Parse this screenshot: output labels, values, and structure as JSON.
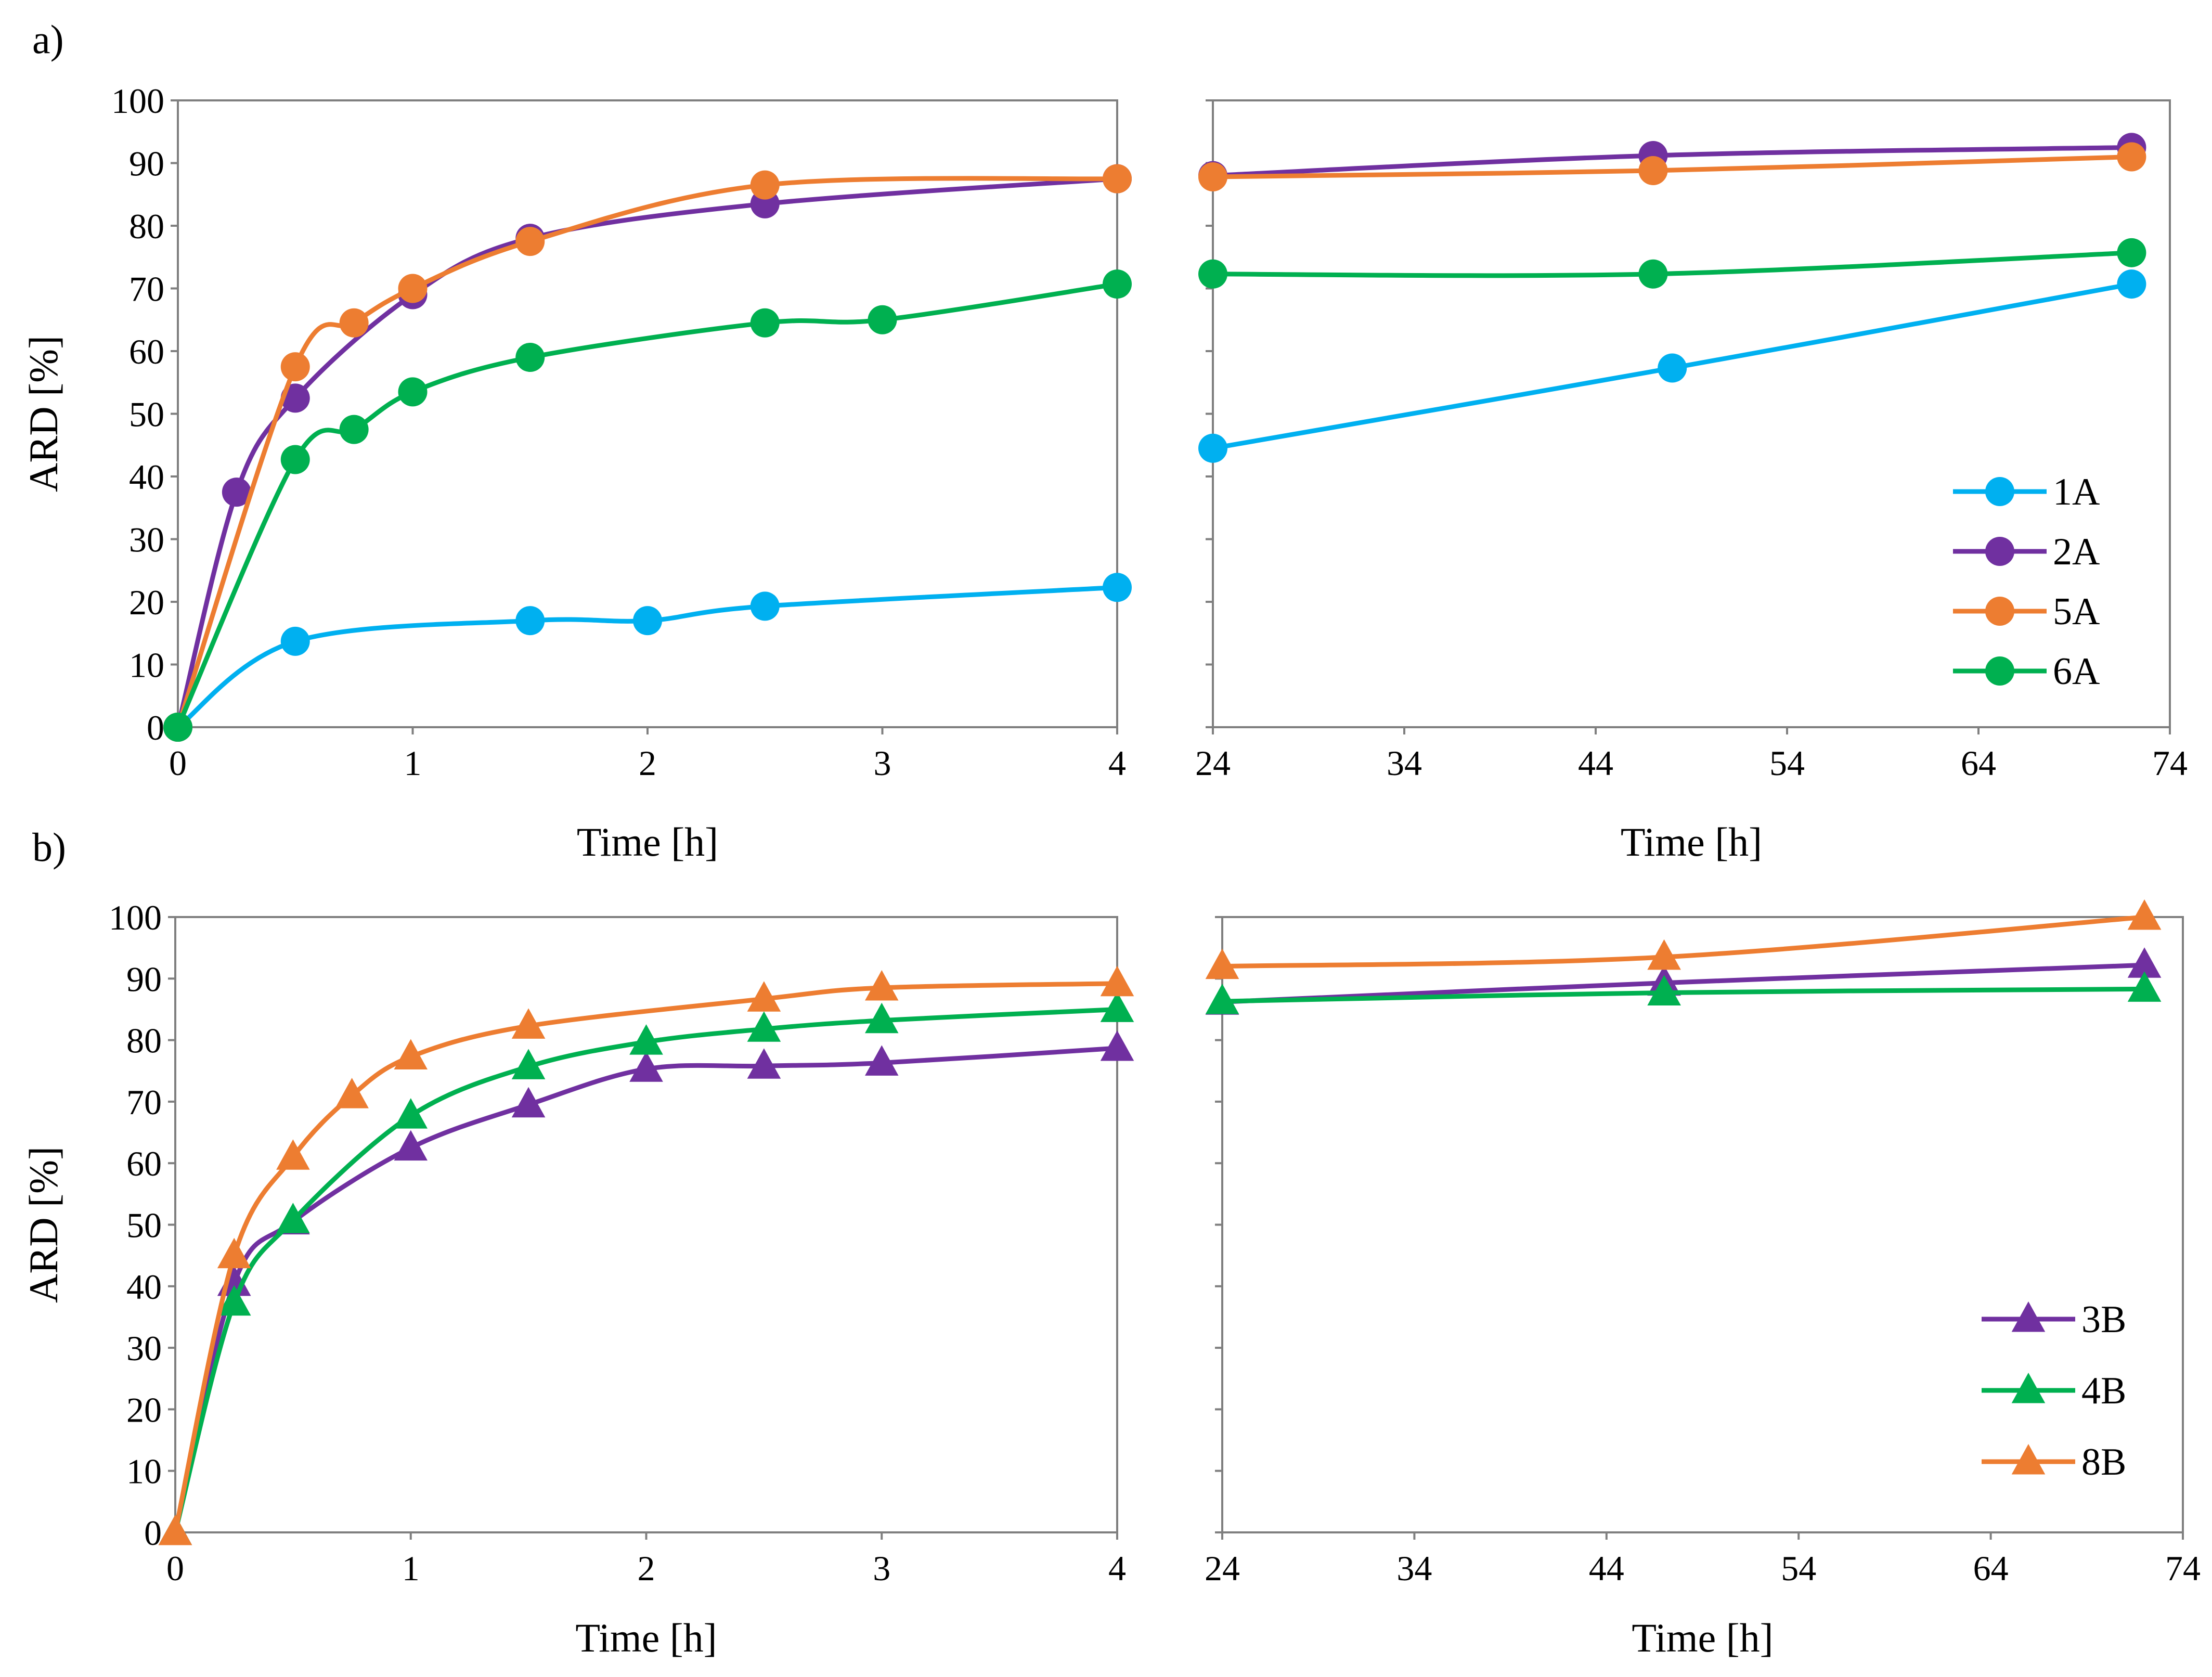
{
  "chart_data": [
    {
      "panel_label": "a)",
      "type": "line",
      "ylabel": "ARD [%]",
      "ylim": [
        0,
        100
      ],
      "yticks": [
        0,
        10,
        20,
        30,
        40,
        50,
        60,
        70,
        80,
        90,
        100
      ],
      "marker": "circle",
      "legend_position": "bottom-right of right subplot",
      "subplots": [
        {
          "xlabel": "Time [h]",
          "xlim": [
            0,
            4
          ],
          "xticks": [
            0,
            1,
            2,
            3,
            4
          ],
          "series": [
            {
              "name": "1A",
              "color": "#00B0F0",
              "x": [
                0,
                0.5,
                1.5,
                2,
                2.5,
                4
              ],
              "y": [
                0,
                13.7,
                17,
                17,
                19.3,
                22.3
              ]
            },
            {
              "name": "2A",
              "color": "#7030A0",
              "x": [
                0,
                0.25,
                0.5,
                1,
                1.5,
                2.5,
                4
              ],
              "y": [
                0,
                37.5,
                52.5,
                69,
                78,
                83.5,
                87.5
              ]
            },
            {
              "name": "5A",
              "color": "#ED7D31",
              "x": [
                0,
                0.5,
                0.75,
                1,
                1.5,
                2.5,
                4
              ],
              "y": [
                0,
                57.5,
                64.5,
                70,
                77.5,
                86.5,
                87.5
              ]
            },
            {
              "name": "6A",
              "color": "#00B050",
              "x": [
                0,
                0.5,
                0.75,
                1,
                1.5,
                2.5,
                3,
                4
              ],
              "y": [
                0,
                42.7,
                47.5,
                53.5,
                59,
                64.5,
                65,
                70.7
              ]
            }
          ]
        },
        {
          "xlabel": "Time [h]",
          "xlim": [
            24,
            74
          ],
          "xticks": [
            24,
            34,
            44,
            54,
            64,
            74
          ],
          "series": [
            {
              "name": "1A",
              "color": "#00B0F0",
              "x": [
                24,
                48,
                72
              ],
              "y": [
                44.5,
                57.3,
                70.7
              ]
            },
            {
              "name": "2A",
              "color": "#7030A0",
              "x": [
                24,
                47,
                72
              ],
              "y": [
                88,
                91.2,
                92.5
              ]
            },
            {
              "name": "5A",
              "color": "#ED7D31",
              "x": [
                24,
                47,
                72
              ],
              "y": [
                87.8,
                88.8,
                91
              ]
            },
            {
              "name": "6A",
              "color": "#00B050",
              "x": [
                24,
                47,
                72
              ],
              "y": [
                72.3,
                72.3,
                75.7
              ]
            }
          ]
        }
      ],
      "legend": [
        "1A",
        "2A",
        "5A",
        "6A"
      ]
    },
    {
      "panel_label": "b)",
      "type": "line",
      "ylabel": "ARD [%]",
      "ylim": [
        0,
        100
      ],
      "yticks": [
        0,
        10,
        20,
        30,
        40,
        50,
        60,
        70,
        80,
        90,
        100
      ],
      "marker": "triangle",
      "legend_position": "bottom-right of right subplot",
      "subplots": [
        {
          "xlabel": "Time [h]",
          "xlim": [
            0,
            4
          ],
          "xticks": [
            0,
            1,
            2,
            3,
            4
          ],
          "series": [
            {
              "name": "3B",
              "color": "#7030A0",
              "x": [
                0,
                0.25,
                0.5,
                1,
                1.5,
                2,
                2.5,
                3,
                4
              ],
              "y": [
                0,
                40.5,
                50.5,
                62.5,
                69.5,
                75.3,
                75.8,
                76.3,
                78.7
              ]
            },
            {
              "name": "4B",
              "color": "#00B050",
              "x": [
                0,
                0.25,
                0.5,
                1,
                1.5,
                2,
                2.5,
                3,
                4
              ],
              "y": [
                0,
                37.3,
                50.7,
                67.7,
                75.7,
                79.7,
                81.8,
                83.2,
                85
              ]
            },
            {
              "name": "8B",
              "color": "#ED7D31",
              "x": [
                0,
                0.25,
                0.5,
                0.75,
                1,
                1.5,
                2.5,
                3,
                4
              ],
              "y": [
                0,
                45,
                61,
                71,
                77.3,
                82.3,
                86.7,
                88.5,
                89.2
              ]
            }
          ]
        },
        {
          "xlabel": "Time [h]",
          "xlim": [
            24,
            74
          ],
          "xticks": [
            24,
            34,
            44,
            54,
            64,
            74
          ],
          "series": [
            {
              "name": "3B",
              "color": "#7030A0",
              "x": [
                24,
                47,
                72
              ],
              "y": [
                86.2,
                89.3,
                92.2
              ]
            },
            {
              "name": "4B",
              "color": "#00B050",
              "x": [
                24,
                47,
                72
              ],
              "y": [
                86.3,
                87.7,
                88.3
              ]
            },
            {
              "name": "8B",
              "color": "#ED7D31",
              "x": [
                24,
                47,
                72
              ],
              "y": [
                92,
                93.5,
                100
              ]
            }
          ]
        }
      ],
      "legend": [
        "3B",
        "4B",
        "8B"
      ]
    }
  ]
}
